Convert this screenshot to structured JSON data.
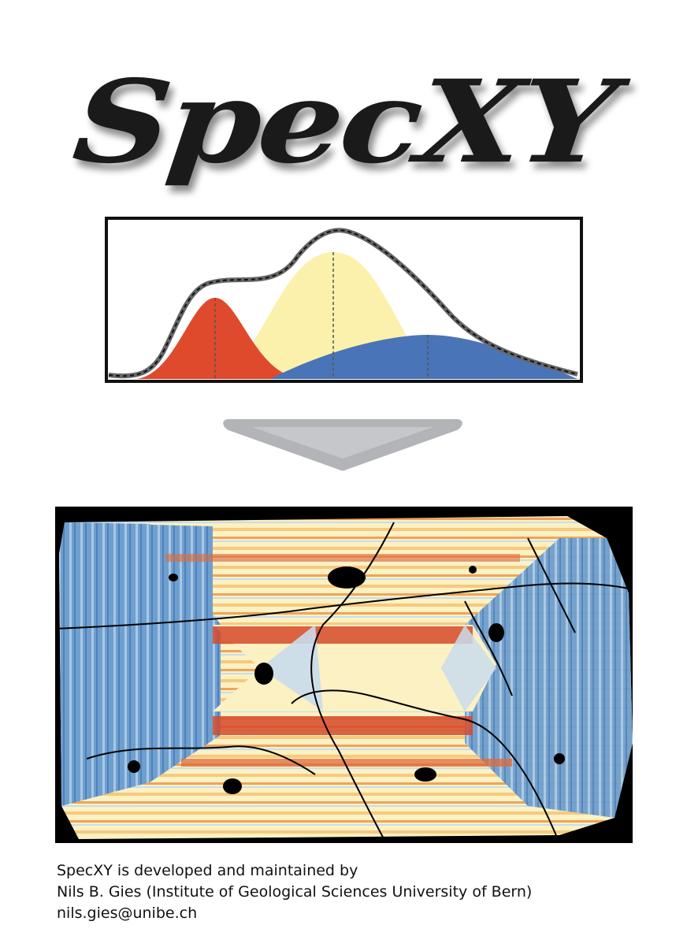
{
  "logo": {
    "text": "SpecXY"
  },
  "credits": {
    "line1": "SpecXY is developed and maintained by",
    "line2": "Nils B. Gies (Institute of Geological Sciences University of Bern)",
    "email": "nils.gies@unibe.ch"
  },
  "colors": {
    "logo_text": "#1a1a1a",
    "peak_red": "#df4a2c",
    "peak_yellow": "#fbf1ad",
    "peak_blue": "#4a74b8",
    "envelope": "#666666",
    "arrow": "#b2b4b7",
    "map_background": "#000000",
    "map_blue": "#6e9fce",
    "map_light_blue": "#c9dcec",
    "map_cream": "#fbf1c2",
    "map_orange": "#f0a35a",
    "map_red": "#d64a2a"
  },
  "icons": {
    "arrow": "chevron-down-icon"
  }
}
